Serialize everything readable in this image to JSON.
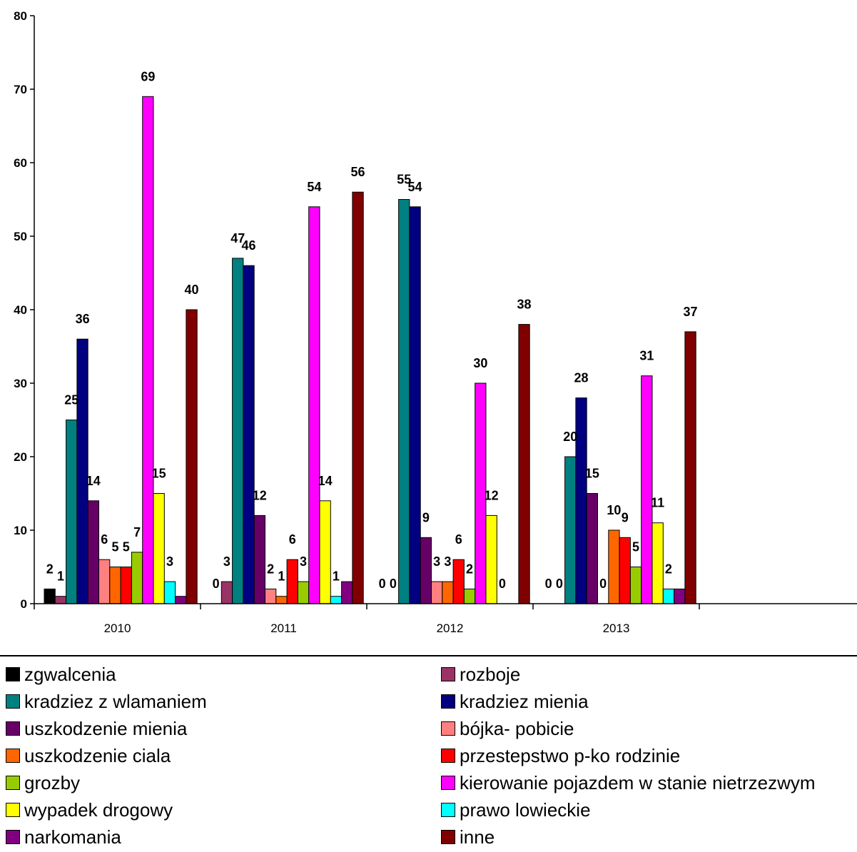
{
  "chart_data": {
    "type": "bar",
    "categories": [
      "2010",
      "2011",
      "2012",
      "2013"
    ],
    "ylim": [
      0,
      80
    ],
    "yticks": [
      "0",
      "10",
      "20",
      "30",
      "40",
      "50",
      "60",
      "70",
      "80"
    ],
    "grid": false,
    "legend_position": "bottom",
    "series": [
      {
        "name": "zgwalcenia",
        "color": "#000000",
        "values": [
          2,
          0,
          0,
          0
        ]
      },
      {
        "name": "rozboje",
        "color": "#993366",
        "values": [
          1,
          3,
          0,
          0
        ]
      },
      {
        "name": "kradziez z wlamaniem",
        "color": "#008080",
        "values": [
          25,
          47,
          55,
          20
        ]
      },
      {
        "name": "kradziez mienia",
        "color": "#000080",
        "values": [
          36,
          46,
          54,
          28
        ]
      },
      {
        "name": "uszkodzenie mienia",
        "color": "#660066",
        "values": [
          14,
          12,
          9,
          15
        ]
      },
      {
        "name": "bójka- pobicie",
        "color": "#FF8080",
        "values": [
          6,
          2,
          3,
          0
        ]
      },
      {
        "name": "uszkodzenie ciala",
        "color": "#FF6600",
        "values": [
          5,
          1,
          3,
          10
        ]
      },
      {
        "name": "przestepstwo p-ko rodzinie",
        "color": "#FF0000",
        "values": [
          5,
          6,
          6,
          9
        ]
      },
      {
        "name": "grozby",
        "color": "#99CC00",
        "values": [
          7,
          3,
          2,
          5
        ]
      },
      {
        "name": "kierowanie pojazdem w stanie nietrzezwym",
        "color": "#FF00FF",
        "values": [
          69,
          54,
          30,
          31
        ]
      },
      {
        "name": "wypadek drogowy",
        "color": "#FFFF00",
        "values": [
          15,
          14,
          12,
          11
        ]
      },
      {
        "name": "prawo lowieckie",
        "color": "#00FFFF",
        "values": [
          3,
          1,
          0,
          2
        ]
      },
      {
        "name": "narkomania",
        "color": "#800080",
        "values": [
          1,
          3,
          null,
          2
        ]
      },
      {
        "name": "inne",
        "color": "#800000",
        "values": [
          40,
          56,
          38,
          37
        ]
      }
    ],
    "data_labels": [
      [
        "2",
        "1",
        "25",
        "36",
        "14",
        "6",
        "5",
        "5",
        "7",
        "69",
        "15",
        "3",
        "",
        "40"
      ],
      [
        "0",
        "3",
        "47",
        "46",
        "12",
        "2",
        "1",
        "6",
        "3",
        "54",
        "14",
        "1",
        "",
        "56"
      ],
      [
        "0",
        "0",
        "55",
        "54",
        "9",
        "3",
        "3",
        "6",
        "2",
        "30",
        "12",
        "0",
        "",
        "38"
      ],
      [
        "0",
        "0",
        "20",
        "28",
        "15",
        "0",
        "10",
        "9",
        "5",
        "31",
        "11",
        "2",
        "",
        "37"
      ]
    ]
  },
  "legend": [
    {
      "label": "zgwalcenia",
      "color": "#000000"
    },
    {
      "label": "rozboje",
      "color": "#993366"
    },
    {
      "label": "kradziez z wlamaniem",
      "color": "#008080"
    },
    {
      "label": "kradziez mienia",
      "color": "#000080"
    },
    {
      "label": "uszkodzenie mienia",
      "color": "#660066"
    },
    {
      "label": "bójka- pobicie",
      "color": "#FF8080"
    },
    {
      "label": "uszkodzenie ciala",
      "color": "#FF6600"
    },
    {
      "label": "przestepstwo p-ko rodzinie",
      "color": "#FF0000"
    },
    {
      "label": "grozby",
      "color": "#99CC00"
    },
    {
      "label": "kierowanie pojazdem w stanie nietrzezwym",
      "color": "#FF00FF"
    },
    {
      "label": "wypadek drogowy",
      "color": "#FFFF00"
    },
    {
      "label": "prawo lowieckie",
      "color": "#00FFFF"
    },
    {
      "label": "narkomania",
      "color": "#800080"
    },
    {
      "label": "inne",
      "color": "#800000"
    }
  ]
}
